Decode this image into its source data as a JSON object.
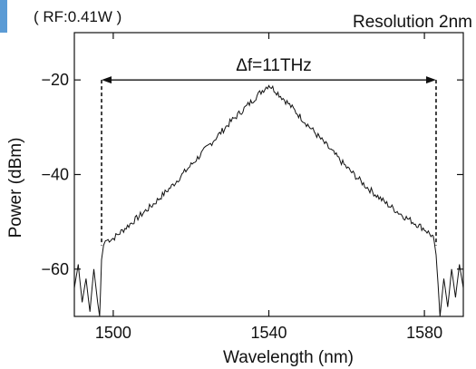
{
  "accent_color": "#5b9bd5",
  "chart_data": {
    "type": "line",
    "xlabel": "Wavelength (nm)",
    "ylabel": "Power (dBm)",
    "xlim": [
      1490,
      1590
    ],
    "ylim": [
      -70,
      -10
    ],
    "xticks": [
      1500,
      1540,
      1580
    ],
    "yticks": [
      -20,
      -40,
      -60
    ],
    "tick_labels": {
      "x": [
        "1500",
        "1540",
        "1580"
      ],
      "y": [
        "−20",
        "−40",
        "−60"
      ]
    },
    "grid": false,
    "annotations": {
      "top_left": "( RF:0.41W )",
      "top_right": "Resolution 2nm",
      "bandwidth_label": "Δf=11THz",
      "bandwidth_x": [
        1497,
        1583
      ],
      "bandwidth_y": -20
    },
    "series": [
      {
        "line_color": "#111111",
        "points": [
          [
            1490,
            -64
          ],
          [
            1491,
            -59
          ],
          [
            1492,
            -67
          ],
          [
            1493,
            -62
          ],
          [
            1494,
            -69
          ],
          [
            1495,
            -60
          ],
          [
            1496,
            -67
          ],
          [
            1496.5,
            -70
          ],
          [
            1497,
            -58
          ],
          [
            1497.5,
            -55
          ],
          [
            1498,
            -54
          ],
          [
            1500,
            -53.5
          ],
          [
            1505,
            -50
          ],
          [
            1510,
            -46.5
          ],
          [
            1515,
            -42.5
          ],
          [
            1520,
            -38
          ],
          [
            1525,
            -33.5
          ],
          [
            1530,
            -29
          ],
          [
            1535,
            -25
          ],
          [
            1538,
            -22.5
          ],
          [
            1540,
            -21
          ],
          [
            1542,
            -22.5
          ],
          [
            1545,
            -25
          ],
          [
            1550,
            -29.5
          ],
          [
            1555,
            -34
          ],
          [
            1560,
            -38.5
          ],
          [
            1565,
            -42.5
          ],
          [
            1570,
            -46
          ],
          [
            1575,
            -49
          ],
          [
            1580,
            -51.5
          ],
          [
            1582,
            -53
          ],
          [
            1582.5,
            -54
          ],
          [
            1583,
            -57
          ],
          [
            1583.5,
            -63
          ],
          [
            1584,
            -70
          ],
          [
            1585,
            -62
          ],
          [
            1586,
            -68
          ],
          [
            1587,
            -60
          ],
          [
            1588,
            -66
          ],
          [
            1589,
            -59
          ],
          [
            1590,
            -64
          ]
        ]
      }
    ]
  }
}
